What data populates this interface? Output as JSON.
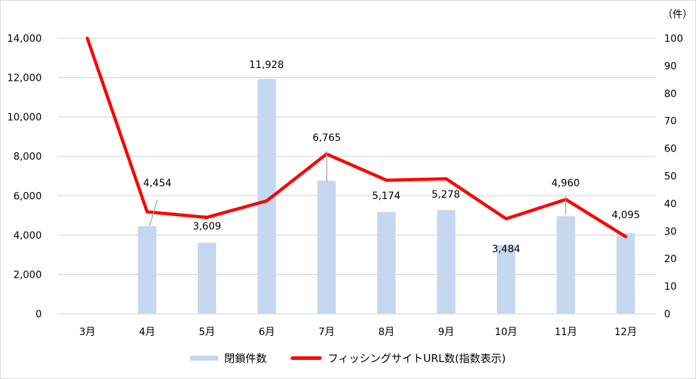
{
  "chart_data": {
    "type": "bar+line",
    "title": "",
    "categories": [
      "3月",
      "4月",
      "5月",
      "6月",
      "7月",
      "8月",
      "9月",
      "10月",
      "11月",
      "12月"
    ],
    "series": [
      {
        "name": "閉鎖件数",
        "type": "bar",
        "axis": "left",
        "color": "#c5d8f0",
        "values": [
          null,
          4454,
          3609,
          11928,
          6765,
          5174,
          5278,
          3484,
          4960,
          4095
        ],
        "labels": [
          "",
          "4,454",
          "3,609",
          "11,928",
          "6,765",
          "5,174",
          "5,278",
          "3,484",
          "4,960",
          "4,095"
        ]
      },
      {
        "name": "フィッシングサイトURL数(指数表示)",
        "type": "line",
        "axis": "right",
        "color": "#ff0000",
        "values": [
          100,
          37,
          35,
          41,
          58,
          48.5,
          49,
          34.5,
          41.5,
          28
        ]
      }
    ],
    "left_axis": {
      "ylim": [
        0,
        14000
      ],
      "ticks": [
        "0",
        "2,000",
        "4,000",
        "6,000",
        "8,000",
        "10,000",
        "12,000",
        "14,000"
      ]
    },
    "right_axis": {
      "unit_label": "（件）",
      "ylim": [
        0,
        100
      ],
      "ticks": [
        "0",
        "10",
        "20",
        "30",
        "40",
        "50",
        "60",
        "70",
        "80",
        "90",
        "100"
      ]
    },
    "grid": true,
    "legend_position": "bottom"
  },
  "legend": {
    "bar_label": "閉鎖件数",
    "line_label": "フィッシングサイトURL数(指数表示)"
  }
}
